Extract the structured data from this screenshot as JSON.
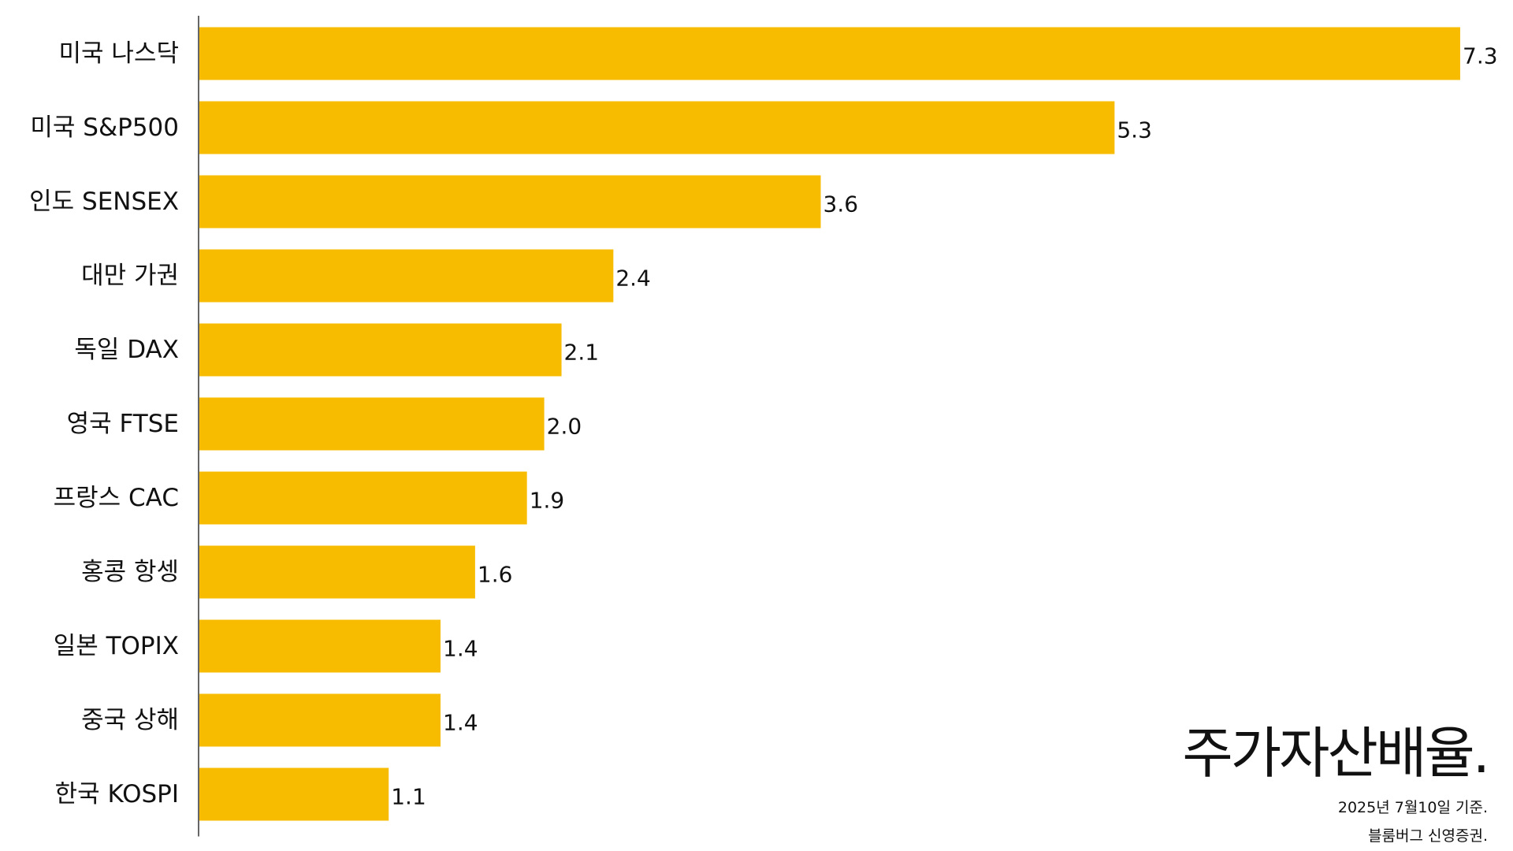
{
  "chart_data": {
    "type": "bar",
    "orientation": "horizontal",
    "title": "주가자산배율.",
    "categories": [
      "미국 나스닥",
      "미국 S&P500",
      "인도 SENSEX",
      "대만 가권",
      "독일 DAX",
      "영국 FTSE",
      "프랑스 CAC",
      "홍콩 항셍",
      "일본 TOPIX",
      "중국 상해",
      "한국 KOSPI"
    ],
    "values": [
      7.3,
      5.3,
      3.6,
      2.4,
      2.1,
      2.0,
      1.9,
      1.6,
      1.4,
      1.4,
      1.1
    ],
    "value_labels": [
      "7.3",
      "5.3",
      "3.6",
      "2.4",
      "2.1",
      "2.0",
      "1.9",
      "1.6",
      "1.4",
      "1.4",
      "1.1"
    ],
    "xlim": [
      0,
      7.3
    ],
    "bar_color": "#F7BC00",
    "axis_color": "#333333",
    "grid": false,
    "legend": "none",
    "notes": [
      "2025년 7월10일 기준.",
      "블룸버그 신영증권."
    ]
  }
}
